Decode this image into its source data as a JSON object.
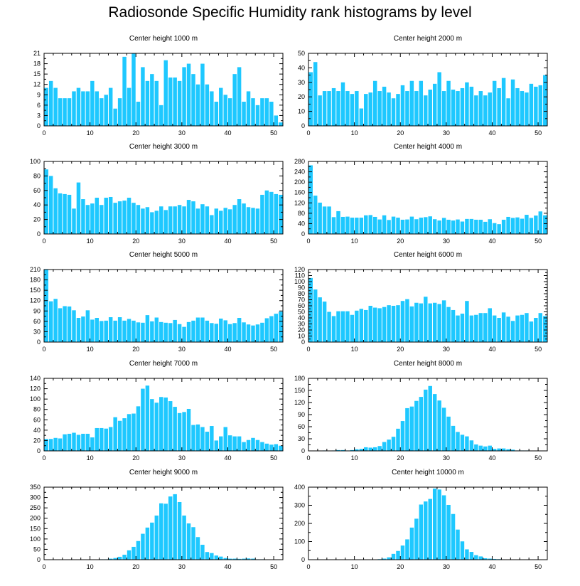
{
  "page_title": "Radiosonde Specific Humidity rank histograms by level",
  "colors": {
    "bar": "#1ec8ff",
    "bar_edge": "#ffffff",
    "axis": "#000000"
  },
  "chart_data": [
    {
      "type": "bar",
      "title": "Center height 1000 m",
      "xlim": [
        0,
        52
      ],
      "ylim": [
        0,
        21
      ],
      "xticks": [
        0,
        10,
        20,
        30,
        40,
        50
      ],
      "yticks": [
        0,
        3,
        6,
        9,
        12,
        15,
        18,
        21
      ],
      "values": [
        11,
        13,
        11,
        8,
        8,
        8,
        10,
        11,
        10,
        10,
        13,
        10,
        8,
        9,
        11,
        5,
        8,
        20,
        11,
        21,
        7,
        17,
        13,
        15,
        13,
        6,
        19,
        14,
        14,
        13,
        17,
        18,
        15,
        12,
        18,
        12,
        10,
        7,
        11,
        9,
        8,
        15,
        17,
        7,
        10,
        8,
        6,
        8,
        8,
        7,
        3,
        1
      ]
    },
    {
      "type": "bar",
      "title": "Center height 2000 m",
      "xlim": [
        0,
        52
      ],
      "ylim": [
        0,
        50
      ],
      "xticks": [
        0,
        10,
        20,
        30,
        40,
        50
      ],
      "yticks": [
        0,
        10,
        20,
        30,
        40,
        50
      ],
      "values": [
        37,
        44,
        21,
        24,
        24,
        26,
        24,
        30,
        24,
        22,
        24,
        12,
        22,
        23,
        31,
        24,
        27,
        23,
        19,
        22,
        28,
        24,
        31,
        24,
        31,
        21,
        25,
        29,
        37,
        24,
        31,
        25,
        24,
        26,
        30,
        27,
        21,
        24,
        21,
        23,
        31,
        26,
        33,
        19,
        32,
        26,
        24,
        23,
        29,
        27,
        28,
        35
      ]
    },
    {
      "type": "bar",
      "title": "Center height 3000 m",
      "xlim": [
        0,
        52
      ],
      "ylim": [
        0,
        100
      ],
      "xticks": [
        0,
        10,
        20,
        30,
        40,
        50
      ],
      "yticks": [
        0,
        20,
        40,
        60,
        80,
        100
      ],
      "values": [
        89,
        80,
        63,
        56,
        55,
        54,
        35,
        71,
        48,
        40,
        42,
        50,
        40,
        50,
        51,
        43,
        45,
        46,
        50,
        43,
        40,
        35,
        37,
        30,
        32,
        38,
        33,
        38,
        38,
        40,
        38,
        47,
        45,
        35,
        41,
        38,
        26,
        35,
        32,
        36,
        34,
        40,
        48,
        42,
        37,
        36,
        35,
        54,
        60,
        58,
        55,
        54
      ]
    },
    {
      "type": "bar",
      "title": "Center height 4000 m",
      "xlim": [
        0,
        52
      ],
      "ylim": [
        0,
        280
      ],
      "xticks": [
        0,
        10,
        20,
        30,
        40,
        50
      ],
      "yticks": [
        0,
        40,
        80,
        120,
        160,
        200,
        240,
        280
      ],
      "values": [
        265,
        148,
        121,
        106,
        106,
        65,
        88,
        66,
        67,
        63,
        63,
        63,
        72,
        73,
        66,
        56,
        72,
        54,
        67,
        63,
        55,
        56,
        67,
        57,
        63,
        65,
        68,
        57,
        52,
        62,
        55,
        52,
        56,
        48,
        58,
        58,
        55,
        55,
        47,
        57,
        42,
        38,
        55,
        66,
        62,
        64,
        59,
        74,
        62,
        71,
        87,
        72
      ]
    },
    {
      "type": "bar",
      "title": "Center height 5000 m",
      "xlim": [
        0,
        52
      ],
      "ylim": [
        0,
        210
      ],
      "xticks": [
        0,
        10,
        20,
        30,
        40,
        50
      ],
      "yticks": [
        0,
        30,
        60,
        90,
        120,
        150,
        180,
        210
      ],
      "values": [
        210,
        118,
        125,
        98,
        104,
        103,
        92,
        70,
        74,
        92,
        65,
        70,
        61,
        62,
        72,
        62,
        72,
        62,
        67,
        62,
        57,
        56,
        78,
        60,
        71,
        58,
        56,
        55,
        64,
        52,
        44,
        58,
        62,
        71,
        71,
        62,
        55,
        53,
        68,
        63,
        52,
        55,
        70,
        57,
        51,
        48,
        51,
        56,
        69,
        75,
        82,
        88
      ]
    },
    {
      "type": "bar",
      "title": "Center height 6000 m",
      "xlim": [
        0,
        52
      ],
      "ylim": [
        0,
        120
      ],
      "xticks": [
        0,
        10,
        20,
        30,
        40,
        50
      ],
      "yticks": [
        0,
        10,
        20,
        30,
        40,
        50,
        60,
        70,
        80,
        90,
        100,
        110,
        120
      ],
      "values": [
        106,
        87,
        74,
        67,
        50,
        43,
        51,
        51,
        51,
        45,
        52,
        55,
        53,
        60,
        57,
        56,
        58,
        61,
        60,
        61,
        68,
        71,
        59,
        65,
        64,
        75,
        64,
        65,
        63,
        69,
        58,
        53,
        44,
        47,
        68,
        44,
        45,
        48,
        48,
        56,
        44,
        40,
        49,
        42,
        35,
        44,
        45,
        48,
        34,
        40,
        48,
        43
      ]
    },
    {
      "type": "bar",
      "title": "Center height 7000 m",
      "xlim": [
        0,
        52
      ],
      "ylim": [
        0,
        140
      ],
      "xticks": [
        0,
        10,
        20,
        30,
        40,
        50
      ],
      "yticks": [
        0,
        20,
        40,
        60,
        80,
        100,
        120,
        140
      ],
      "values": [
        23,
        23,
        25,
        24,
        32,
        33,
        35,
        31,
        33,
        33,
        26,
        44,
        44,
        43,
        46,
        65,
        58,
        63,
        71,
        72,
        86,
        120,
        126,
        100,
        93,
        104,
        103,
        96,
        85,
        73,
        75,
        81,
        50,
        51,
        46,
        37,
        48,
        20,
        28,
        46,
        30,
        28,
        28,
        17,
        21,
        25,
        21,
        17,
        14,
        12,
        13,
        10
      ]
    },
    {
      "type": "bar",
      "title": "Center height 8000 m",
      "xlim": [
        0,
        52
      ],
      "ylim": [
        0,
        180
      ],
      "xticks": [
        0,
        10,
        20,
        30,
        40,
        50
      ],
      "yticks": [
        0,
        30,
        60,
        90,
        120,
        150,
        180
      ],
      "values": [
        0,
        0,
        0,
        1,
        0,
        1,
        2,
        2,
        1,
        2,
        4,
        5,
        9,
        8,
        9,
        12,
        22,
        28,
        35,
        55,
        74,
        106,
        110,
        124,
        134,
        152,
        161,
        141,
        125,
        107,
        85,
        62,
        47,
        40,
        36,
        26,
        16,
        13,
        11,
        13,
        5,
        6,
        6,
        4,
        3,
        1,
        1,
        1,
        0,
        0,
        0,
        0
      ]
    },
    {
      "type": "bar",
      "title": "Center height 9000 m",
      "xlim": [
        0,
        52
      ],
      "ylim": [
        0,
        350
      ],
      "xticks": [
        0,
        10,
        20,
        30,
        40,
        50
      ],
      "yticks": [
        0,
        50,
        100,
        150,
        200,
        250,
        300,
        350
      ],
      "values": [
        0,
        0,
        0,
        0,
        0,
        0,
        0,
        0,
        0,
        0,
        1,
        0,
        2,
        2,
        5,
        8,
        14,
        24,
        45,
        62,
        90,
        125,
        155,
        179,
        213,
        272,
        270,
        305,
        316,
        278,
        213,
        175,
        157,
        109,
        72,
        37,
        32,
        20,
        15,
        8,
        5,
        5,
        4,
        5,
        6,
        5,
        2,
        2,
        1,
        1,
        1,
        0
      ]
    },
    {
      "type": "bar",
      "title": "Center height 10000 m",
      "xlim": [
        0,
        52
      ],
      "ylim": [
        0,
        400
      ],
      "xticks": [
        0,
        10,
        20,
        30,
        40,
        50
      ],
      "yticks": [
        0,
        100,
        200,
        300,
        400
      ],
      "values": [
        0,
        0,
        0,
        0,
        0,
        0,
        0,
        0,
        0,
        0,
        0,
        0,
        0,
        1,
        1,
        3,
        6,
        13,
        32,
        48,
        78,
        112,
        177,
        226,
        304,
        321,
        335,
        392,
        387,
        355,
        302,
        252,
        166,
        101,
        57,
        43,
        25,
        18,
        8,
        6,
        4,
        3,
        2,
        1,
        1,
        1,
        0,
        0,
        0,
        0,
        0,
        0
      ]
    }
  ]
}
